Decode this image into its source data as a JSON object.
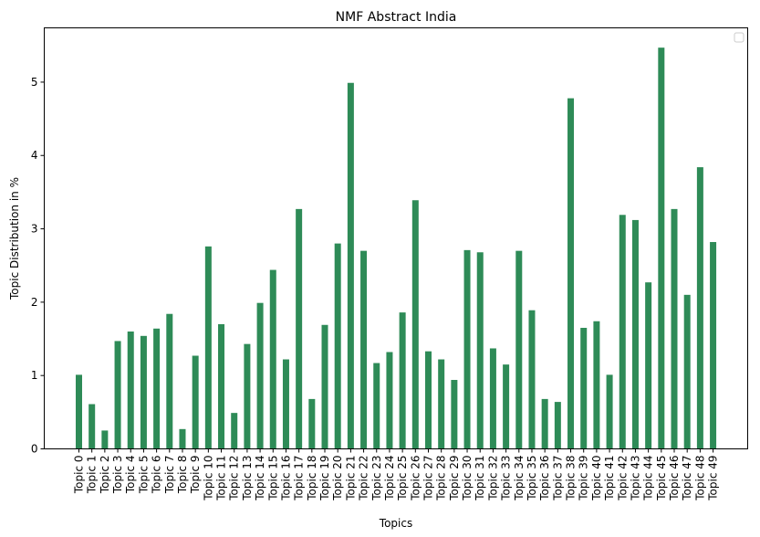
{
  "chart_data": {
    "type": "bar",
    "title": "NMF Abstract India",
    "xlabel": "Topics",
    "ylabel": "Topic Distribution in %",
    "categories": [
      "Topic 0",
      "Topic 1",
      "Topic 2",
      "Topic 3",
      "Topic 4",
      "Topic 5",
      "Topic 6",
      "Topic 7",
      "Topic 8",
      "Topic 9",
      "Topic 10",
      "Topic 11",
      "Topic 12",
      "Topic 13",
      "Topic 14",
      "Topic 15",
      "Topic 16",
      "Topic 17",
      "Topic 18",
      "Topic 19",
      "Topic 20",
      "Topic 21",
      "Topic 22",
      "Topic 23",
      "Topic 24",
      "Topic 25",
      "Topic 26",
      "Topic 27",
      "Topic 28",
      "Topic 29",
      "Topic 30",
      "Topic 31",
      "Topic 32",
      "Topic 33",
      "Topic 34",
      "Topic 35",
      "Topic 36",
      "Topic 37",
      "Topic 38",
      "Topic 39",
      "Topic 40",
      "Topic 41",
      "Topic 42",
      "Topic 43",
      "Topic 44",
      "Topic 45",
      "Topic 46",
      "Topic 47",
      "Topic 48",
      "Topic 49"
    ],
    "values": [
      1.01,
      0.61,
      0.25,
      1.47,
      1.6,
      1.54,
      1.64,
      1.84,
      0.27,
      1.27,
      2.76,
      1.7,
      0.49,
      1.43,
      1.99,
      2.44,
      1.22,
      3.27,
      0.68,
      1.69,
      2.8,
      4.99,
      2.7,
      1.17,
      1.32,
      1.86,
      3.39,
      1.33,
      1.22,
      0.94,
      2.71,
      2.68,
      1.37,
      1.15,
      2.7,
      1.89,
      0.68,
      0.64,
      4.78,
      1.65,
      1.74,
      1.01,
      3.19,
      3.12,
      2.27,
      5.47,
      3.27,
      2.1,
      3.84,
      2.82
    ],
    "yticks": [
      0,
      1,
      2,
      3,
      4,
      5
    ],
    "ylim": [
      0,
      5.74
    ],
    "bar_color": "#2e8b57",
    "legend": {
      "placement": "top-right",
      "entries": []
    },
    "grid": false
  }
}
